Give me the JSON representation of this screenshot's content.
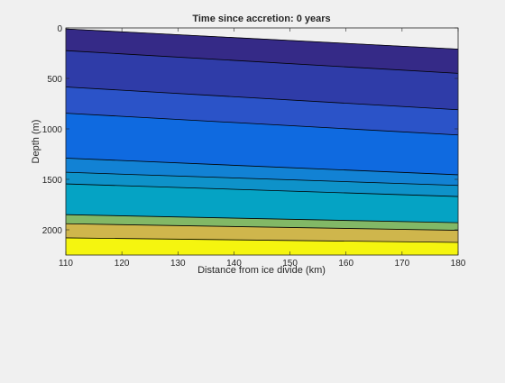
{
  "chart_data": {
    "type": "area",
    "title": "Time since accretion: 0 years",
    "xlabel": "Distance from ice divide (km)",
    "ylabel": "Depth (m)",
    "xlim": [
      110,
      180
    ],
    "ylim": [
      2250,
      0
    ],
    "y_reversed": true,
    "x_ticks": [
      110,
      120,
      130,
      140,
      150,
      160,
      170,
      180
    ],
    "y_ticks": [
      0,
      500,
      1000,
      1500,
      2000
    ],
    "surface": {
      "x": [
        110,
        180
      ],
      "y": [
        10,
        210
      ]
    },
    "layers": [
      {
        "top": [
          10,
          210
        ],
        "bottom": [
          225,
          450
        ],
        "color": "#352a87"
      },
      {
        "top": [
          225,
          450
        ],
        "bottom": [
          585,
          810
        ],
        "color": "#2f3ca8"
      },
      {
        "top": [
          585,
          810
        ],
        "bottom": [
          845,
          1060
        ],
        "color": "#2b53c8"
      },
      {
        "top": [
          845,
          1060
        ],
        "bottom": [
          1290,
          1455
        ],
        "color": "#0f6ae0"
      },
      {
        "top": [
          1290,
          1455
        ],
        "bottom": [
          1430,
          1560
        ],
        "color": "#1282d4"
      },
      {
        "top": [
          1430,
          1560
        ],
        "bottom": [
          1545,
          1670
        ],
        "color": "#0e92c9"
      },
      {
        "top": [
          1545,
          1670
        ],
        "bottom": [
          1850,
          1930
        ],
        "color": "#05a3c4"
      },
      {
        "top": [
          1850,
          1930
        ],
        "bottom": [
          1940,
          2005
        ],
        "color": "#82b866"
      },
      {
        "top": [
          1940,
          2005
        ],
        "bottom": [
          2080,
          2125
        ],
        "color": "#cfb64c"
      },
      {
        "top": [
          2080,
          2125
        ],
        "bottom": [
          2250,
          2250
        ],
        "color": "#f5f50f"
      }
    ],
    "grid": false,
    "legend": "none"
  }
}
